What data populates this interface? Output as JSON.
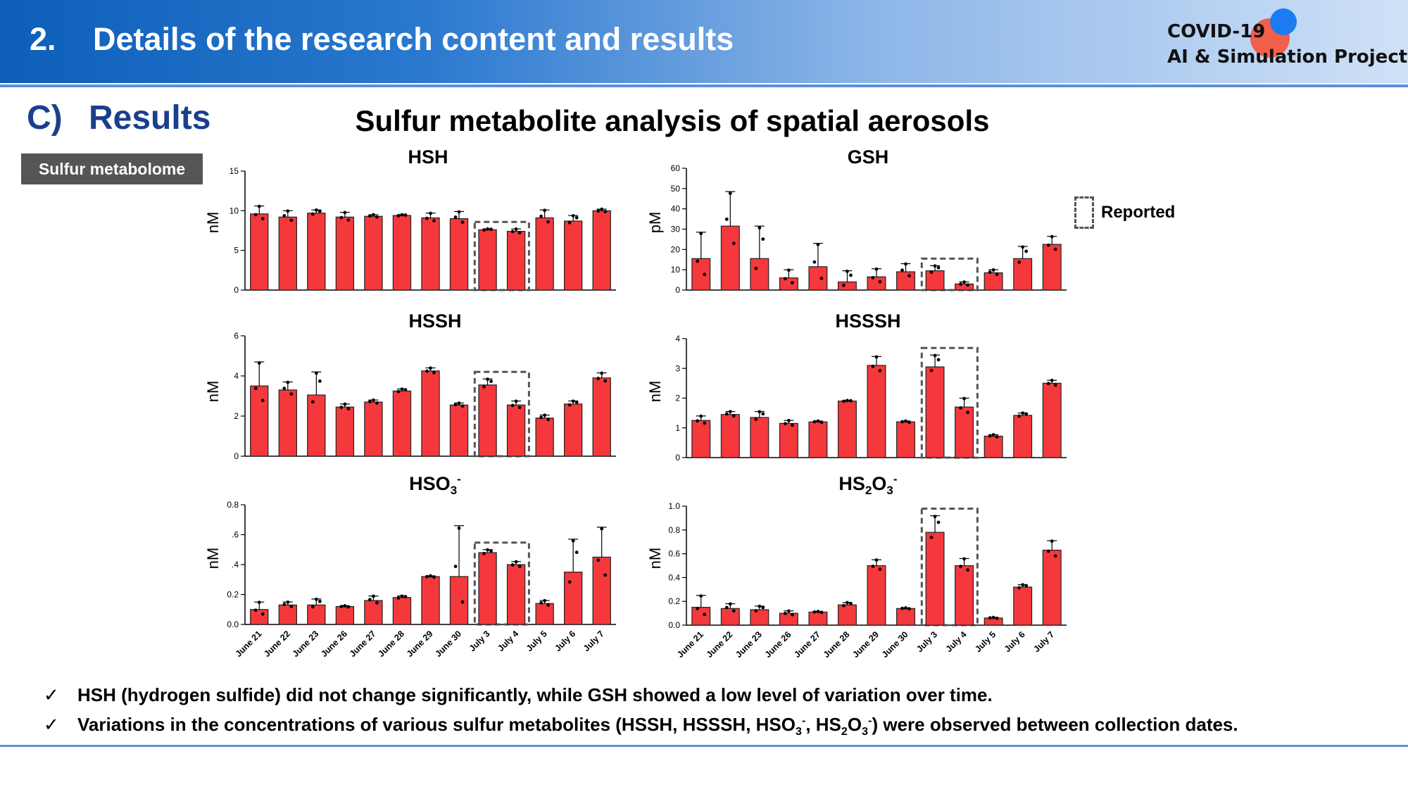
{
  "header": {
    "number": "2.",
    "title": "Details of the research content and results",
    "logo_line1": "COVID-19",
    "logo_line2": "AI & Simulation Project"
  },
  "section": {
    "letter": "C)",
    "title": "Results"
  },
  "tag": "Sulfur metabolome",
  "main_title": "Sulfur metabolite analysis of spatial aerosols",
  "legend": {
    "label": "Reported"
  },
  "bullets": [
    {
      "check": "✓",
      "parts": [
        "HSH (hydrogen sulfide) did not change significantly, while GSH showed a low level of variation over time."
      ]
    },
    {
      "check": "✓",
      "parts": [
        "Variations in the concentrations of various sulfur metabolites (HSSH, HSSSH, HSO",
        "3",
        "-",
        ", HS",
        "2",
        "O",
        "3",
        "-",
        ") were observed between collection dates."
      ]
    }
  ],
  "colors": {
    "bar": "#f5383b",
    "bar_edge": "#000000",
    "accent": "#1a3f8c"
  },
  "chart_data": [
    {
      "type": "bar",
      "title": [
        "HSH"
      ],
      "ylabel": "nM",
      "ylim": [
        0,
        15
      ],
      "yticks": [
        "0",
        "5",
        "10",
        "15"
      ],
      "categories": [
        "June 21",
        "June 22",
        "June 23",
        "June 26",
        "June 27",
        "June 28",
        "June 29",
        "June 30",
        "July 3",
        "July 4",
        "July 5",
        "July 6",
        "July 7"
      ],
      "values": [
        9.6,
        9.2,
        9.7,
        9.2,
        9.3,
        9.4,
        9.1,
        9.0,
        7.6,
        7.4,
        9.1,
        8.7,
        10.0
      ],
      "errors": [
        1.0,
        0.8,
        0.4,
        0.6,
        0.2,
        0.1,
        0.6,
        0.9,
        0.1,
        0.3,
        1.0,
        0.7,
        0.2
      ],
      "highlight": [
        8,
        9
      ],
      "show_xlabels": false
    },
    {
      "type": "bar",
      "title": [
        "GSH"
      ],
      "ylabel": "pM",
      "ylim": [
        0,
        60
      ],
      "yticks": [
        "0",
        "10",
        "20",
        "30",
        "40",
        "50",
        "60"
      ],
      "categories": [
        "June 21",
        "June 22",
        "June 23",
        "June 26",
        "June 27",
        "June 28",
        "June 29",
        "June 30",
        "July 3",
        "July 4",
        "July 5",
        "July 6",
        "July 7"
      ],
      "values": [
        15.5,
        31.5,
        15.5,
        6.0,
        11.5,
        4.0,
        6.5,
        9.0,
        9.5,
        3.0,
        8.5,
        15.5,
        22.5
      ],
      "errors": [
        13,
        17,
        16,
        4,
        11.5,
        5.5,
        4,
        4,
        2.5,
        1,
        1.5,
        6,
        4
      ],
      "highlight": [
        8,
        9
      ],
      "show_xlabels": false
    },
    {
      "type": "bar",
      "title": [
        "HSSH"
      ],
      "ylabel": "nM",
      "ylim": [
        0,
        6
      ],
      "yticks": [
        "0",
        "2",
        "4",
        "6"
      ],
      "categories": [
        "June 21",
        "June 22",
        "June 23",
        "June 26",
        "June 27",
        "June 28",
        "June 29",
        "June 30",
        "July 3",
        "July 4",
        "July 5",
        "July 6",
        "July 7"
      ],
      "values": [
        3.5,
        3.3,
        3.05,
        2.45,
        2.7,
        3.25,
        4.25,
        2.55,
        3.55,
        2.55,
        1.9,
        2.6,
        3.9
      ],
      "errors": [
        1.2,
        0.4,
        1.15,
        0.15,
        0.1,
        0.1,
        0.15,
        0.1,
        0.3,
        0.2,
        0.15,
        0.15,
        0.25
      ],
      "highlight": [
        8,
        9
      ],
      "show_xlabels": false
    },
    {
      "type": "bar",
      "title": [
        "HSSSH"
      ],
      "ylabel": "nM",
      "ylim": [
        0,
        4
      ],
      "yticks": [
        "0",
        "1",
        "2",
        "3",
        "4"
      ],
      "categories": [
        "June 21",
        "June 22",
        "June 23",
        "June 26",
        "June 27",
        "June 28",
        "June 29",
        "June 30",
        "July 3",
        "July 4",
        "July 5",
        "July 6",
        "July 7"
      ],
      "values": [
        1.25,
        1.45,
        1.35,
        1.15,
        1.2,
        1.9,
        3.1,
        1.2,
        3.05,
        1.7,
        0.72,
        1.42,
        2.5
      ],
      "errors": [
        0.15,
        0.1,
        0.2,
        0.1,
        0.03,
        0.02,
        0.3,
        0.03,
        0.4,
        0.3,
        0.05,
        0.08,
        0.1
      ],
      "highlight": [
        8,
        9
      ],
      "show_xlabels": false
    },
    {
      "type": "bar",
      "title": [
        "HSO",
        "3",
        "-"
      ],
      "ylabel": "nM",
      "ylim": [
        0,
        0.8
      ],
      "yticks": [
        "0.0",
        "0.2",
        "0.4",
        "0.6",
        "0.8"
      ],
      "ytick_display": [
        "0.0",
        "0.2",
        ".4",
        ".6",
        "0.8"
      ],
      "categories": [
        "June 21",
        "June 22",
        "June 23",
        "June 26",
        "June 27",
        "June 28",
        "June 29",
        "June 30",
        "July 3",
        "July 4",
        "July 5",
        "July 6",
        "July 7"
      ],
      "values": [
        0.1,
        0.13,
        0.13,
        0.12,
        0.16,
        0.18,
        0.32,
        0.32,
        0.48,
        0.4,
        0.14,
        0.35,
        0.45
      ],
      "errors": [
        0.05,
        0.02,
        0.04,
        0.005,
        0.03,
        0.01,
        0.005,
        0.34,
        0.02,
        0.02,
        0.02,
        0.22,
        0.2
      ],
      "highlight": [
        8,
        9
      ],
      "show_xlabels": true
    },
    {
      "type": "bar",
      "title": [
        "HS",
        "2",
        "O",
        "3",
        "-"
      ],
      "ylabel": "nM",
      "ylim": [
        0,
        1.0
      ],
      "yticks": [
        "0.0",
        "0.2",
        "0.4",
        "0.6",
        "0.8",
        "1.0"
      ],
      "categories": [
        "June 21",
        "June 22",
        "June 23",
        "June 26",
        "June 27",
        "June 28",
        "June 29",
        "June 30",
        "July 3",
        "July 4",
        "July 5",
        "July 6",
        "July 7"
      ],
      "values": [
        0.15,
        0.14,
        0.13,
        0.1,
        0.11,
        0.17,
        0.5,
        0.14,
        0.78,
        0.5,
        0.06,
        0.32,
        0.63
      ],
      "errors": [
        0.1,
        0.04,
        0.03,
        0.02,
        0.005,
        0.02,
        0.05,
        0.005,
        0.14,
        0.06,
        0.005,
        0.02,
        0.08
      ],
      "highlight": [
        8,
        9
      ],
      "show_xlabels": true
    }
  ]
}
